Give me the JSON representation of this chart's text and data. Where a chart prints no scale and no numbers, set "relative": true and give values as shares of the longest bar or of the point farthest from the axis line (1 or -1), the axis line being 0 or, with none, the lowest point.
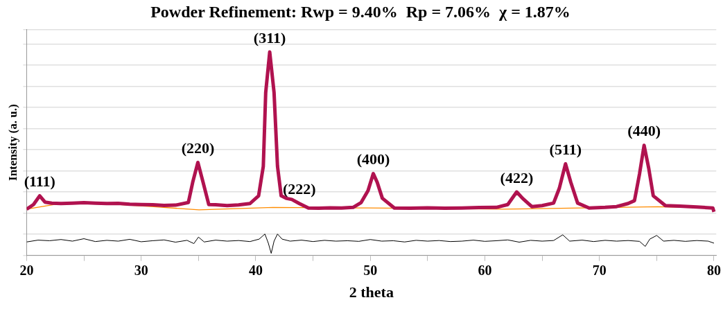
{
  "chart_data": {
    "type": "line",
    "title": "Powder Refinement: Rwp = 9.40%  Rp = 7.06%  χ = 1.87%",
    "xlabel": "2 theta",
    "ylabel": "Intensity (a. u.)",
    "relative": true,
    "xlim": [
      20,
      80.2
    ],
    "xticks": [
      20,
      {
        "value": 25,
        "label": null
      },
      30,
      {
        "value": 35,
        "label": null
      },
      40,
      {
        "value": 45,
        "label": null
      },
      50,
      {
        "value": 55,
        "label": null
      },
      60,
      {
        "value": 65,
        "label": null
      },
      70,
      {
        "value": 75,
        "label": null
      },
      80
    ],
    "grid": "y",
    "legend": false,
    "marker": "none",
    "line_style": "solid",
    "series": [
      {
        "color": "#b0124f",
        "x": [
          20.0,
          20.6,
          21.14,
          21.6,
          22.2,
          23.0,
          24.0,
          25.0,
          26.0,
          27.0,
          28.0,
          29.0,
          30.0,
          31.0,
          32.0,
          33.0,
          34.12,
          34.5,
          34.95,
          35.4,
          35.9,
          36.5,
          37.5,
          38.5,
          39.5,
          40.25,
          40.66,
          40.87,
          41.22,
          41.6,
          41.9,
          42.22,
          42.7,
          43.15,
          43.8,
          44.6,
          45.5,
          46.5,
          47.5,
          48.5,
          49.2,
          49.8,
          50.26,
          50.6,
          51.05,
          52.1,
          53.5,
          55.0,
          56.5,
          58.0,
          59.5,
          61.0,
          62.0,
          62.78,
          63.3,
          64.1,
          65.0,
          66.0,
          66.5,
          67.04,
          67.5,
          68.1,
          69.1,
          70.5,
          71.5,
          72.5,
          73.06,
          73.5,
          73.9,
          74.3,
          74.7,
          75.76,
          77.0,
          78.5,
          79.9,
          80.0
        ],
        "values": [
          0.227,
          0.25,
          0.293,
          0.262,
          0.257,
          0.255,
          0.257,
          0.259,
          0.257,
          0.255,
          0.256,
          0.252,
          0.25,
          0.249,
          0.246,
          0.247,
          0.26,
          0.36,
          0.457,
          0.36,
          0.25,
          0.249,
          0.245,
          0.248,
          0.255,
          0.293,
          0.438,
          0.8,
          1.0,
          0.8,
          0.438,
          0.293,
          0.28,
          0.275,
          0.255,
          0.233,
          0.232,
          0.234,
          0.233,
          0.236,
          0.26,
          0.318,
          0.402,
          0.36,
          0.281,
          0.233,
          0.232,
          0.234,
          0.232,
          0.233,
          0.235,
          0.236,
          0.25,
          0.312,
          0.28,
          0.24,
          0.245,
          0.257,
          0.33,
          0.45,
          0.36,
          0.257,
          0.233,
          0.236,
          0.24,
          0.255,
          0.269,
          0.4,
          0.541,
          0.43,
          0.293,
          0.245,
          0.242,
          0.238,
          0.233,
          0.214
        ]
      },
      {
        "color": "#ff8c00",
        "x": [
          20.0,
          22.8,
          26.95,
          31.1,
          35.05,
          41.5,
          49.8,
          61.6,
          75.1,
          79.9
        ],
        "values": [
          0.227,
          0.254,
          0.254,
          0.239,
          0.224,
          0.236,
          0.233,
          0.227,
          0.239,
          0.233
        ]
      },
      {
        "color": "#000000",
        "x": [
          20.0,
          21.0,
          22.0,
          23.0,
          24.0,
          25.0,
          26.0,
          27.0,
          28.0,
          29.0,
          30.0,
          31.0,
          32.0,
          33.0,
          34.0,
          34.6,
          35.0,
          35.5,
          36.5,
          37.5,
          38.5,
          39.5,
          40.3,
          40.8,
          41.1,
          41.35,
          41.6,
          41.9,
          42.3,
          43.0,
          44.0,
          45.0,
          46.0,
          47.0,
          48.0,
          49.0,
          50.0,
          51.0,
          52.0,
          53.0,
          54.0,
          55.0,
          56.0,
          57.0,
          58.0,
          59.0,
          60.0,
          61.0,
          62.0,
          63.0,
          64.0,
          65.0,
          66.0,
          66.8,
          67.4,
          68.5,
          69.5,
          70.5,
          71.5,
          72.5,
          73.5,
          74.0,
          74.4,
          75.0,
          75.6,
          76.5,
          77.5,
          78.5,
          79.5,
          80.0
        ],
        "values": [
          0.066,
          0.075,
          0.072,
          0.078,
          0.07,
          0.082,
          0.068,
          0.074,
          0.07,
          0.079,
          0.067,
          0.072,
          0.076,
          0.065,
          0.074,
          0.058,
          0.09,
          0.066,
          0.075,
          0.07,
          0.073,
          0.068,
          0.08,
          0.105,
          0.06,
          0.01,
          0.07,
          0.105,
          0.08,
          0.07,
          0.075,
          0.068,
          0.074,
          0.07,
          0.072,
          0.069,
          0.078,
          0.07,
          0.072,
          0.066,
          0.074,
          0.07,
          0.073,
          0.068,
          0.07,
          0.075,
          0.069,
          0.072,
          0.076,
          0.065,
          0.074,
          0.07,
          0.073,
          0.101,
          0.07,
          0.075,
          0.068,
          0.074,
          0.07,
          0.073,
          0.069,
          0.044,
          0.08,
          0.098,
          0.07,
          0.074,
          0.069,
          0.073,
          0.07,
          0.06
        ]
      }
    ],
    "annotations": [
      {
        "text": "(111)",
        "x": 21.14,
        "y": 0.293
      },
      {
        "text": "(220)",
        "x": 34.95,
        "y": 0.457
      },
      {
        "text": "(311)",
        "x": 41.22,
        "y": 1.0
      },
      {
        "text": "(222)",
        "x": 43.8,
        "y": 0.255
      },
      {
        "text": "(400)",
        "x": 50.26,
        "y": 0.402
      },
      {
        "text": "(422)",
        "x": 62.78,
        "y": 0.312
      },
      {
        "text": "(511)",
        "x": 67.04,
        "y": 0.45
      },
      {
        "text": "(440)",
        "x": 73.9,
        "y": 0.541
      }
    ]
  }
}
